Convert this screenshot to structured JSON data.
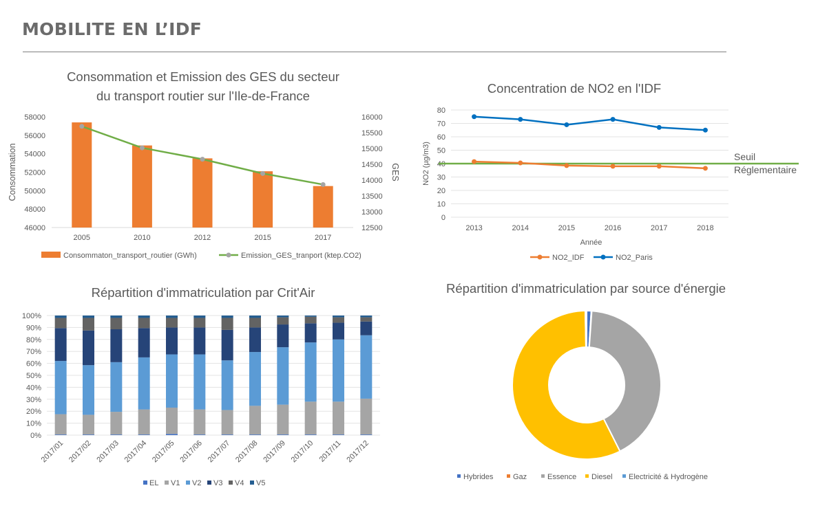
{
  "page": {
    "title": "MOBILITE EN L’IDF"
  },
  "chart_data": [
    {
      "id": "conso",
      "type": "bar",
      "title_lines": [
        "Consommation et Emission des GES du secteur",
        "du transport routier sur l'Ile-de-France"
      ],
      "categories": [
        "2005",
        "2010",
        "2012",
        "2015",
        "2017"
      ],
      "ylabel": "Consommation",
      "y2label": "GES",
      "ylim": [
        46000,
        58000
      ],
      "y_ticks": [
        46000,
        48000,
        50000,
        52000,
        54000,
        56000,
        58000
      ],
      "y2lim": [
        12500,
        16000
      ],
      "y2_ticks": [
        12500,
        13000,
        13500,
        14000,
        14500,
        15000,
        15500,
        16000
      ],
      "series": [
        {
          "name": "Consommaton_transport_routier (GWh)",
          "kind": "bar",
          "axis": "left",
          "color": "#ED7D31",
          "values": [
            57400,
            54900,
            53500,
            52100,
            50500
          ]
        },
        {
          "name": "Emission_GES_tranport (ktep.CO2)",
          "kind": "line",
          "axis": "right",
          "color": "#70AD47",
          "marker_color": "#A5A5A5",
          "values": [
            15700,
            15020,
            14660,
            14210,
            13860
          ]
        }
      ],
      "legend": "bottom",
      "grid": false
    },
    {
      "id": "no2",
      "type": "line",
      "title": "Concentration de NO2 en l'IDF",
      "x": [
        "2013",
        "2014",
        "2015",
        "2016",
        "2017",
        "2018"
      ],
      "xlabel": "Année",
      "ylabel": "NO2 (µg/m3)",
      "ylim": [
        0,
        80
      ],
      "y_ticks": [
        0,
        10,
        20,
        30,
        40,
        50,
        60,
        70,
        80
      ],
      "series": [
        {
          "name": "NO2_IDF",
          "color": "#ED7D31",
          "values": [
            41.5,
            40.5,
            38.5,
            38,
            38,
            36.5
          ]
        },
        {
          "name": "NO2_Paris",
          "color": "#0070C0",
          "values": [
            75,
            73,
            69,
            73,
            67,
            65
          ]
        }
      ],
      "threshold": {
        "value": 40,
        "label_lines": [
          "Seuil",
          "Réglementaire"
        ],
        "color": "#70AD47"
      },
      "legend": "bottom",
      "grid": true
    },
    {
      "id": "critair",
      "type": "bar",
      "stacked": true,
      "title": "Répartition d'immatriculation par Crit'Air",
      "categories": [
        "2017/01",
        "2017/02",
        "2017/03",
        "2017/04",
        "2017/05",
        "2017/06",
        "2017/07",
        "2017/08",
        "2017/09",
        "2017/10",
        "2017/11",
        "2017/12"
      ],
      "y_ticks": [
        "0%",
        "10%",
        "20%",
        "30%",
        "40%",
        "50%",
        "60%",
        "70%",
        "80%",
        "90%",
        "100%"
      ],
      "series": [
        {
          "name": "EL",
          "color": "#4472C4",
          "values": [
            0.5,
            0.5,
            0.5,
            0.5,
            1,
            0.5,
            0.5,
            0.5,
            0.5,
            0.5,
            0.5,
            0.5
          ]
        },
        {
          "name": "V1",
          "color": "#A5A5A5",
          "values": [
            17,
            16.5,
            19,
            21,
            22,
            21,
            20.5,
            24,
            25,
            27.5,
            27.5,
            30
          ]
        },
        {
          "name": "V2",
          "color": "#5B9BD5",
          "values": [
            44.5,
            41.5,
            41.5,
            43.5,
            44.5,
            46,
            41.5,
            45,
            48,
            49.5,
            52,
            53
          ]
        },
        {
          "name": "V3",
          "color": "#264478",
          "values": [
            27.5,
            29,
            27.5,
            24.5,
            22.5,
            22.5,
            25.5,
            20.5,
            19,
            16,
            14,
            11.5
          ]
        },
        {
          "name": "V4",
          "color": "#636363",
          "values": [
            8.5,
            10.5,
            9.5,
            8.5,
            8,
            8,
            10,
            8,
            6,
            5.5,
            4.5,
            3.5
          ]
        },
        {
          "name": "V5",
          "color": "#255E91",
          "values": [
            2,
            2,
            2,
            2,
            2,
            2,
            2,
            2,
            1.5,
            1,
            1.5,
            1.5
          ]
        }
      ],
      "ylim": [
        0,
        100
      ],
      "legend": "bottom",
      "grid": true
    },
    {
      "id": "energie",
      "type": "pie",
      "donut": true,
      "title": "Répartition d'immatriculation par source d'énergie",
      "slices": [
        {
          "name": "Hybrides",
          "color": "#4472C4",
          "value": 1
        },
        {
          "name": "Gaz",
          "color": "#ED7D31",
          "value": 0.1
        },
        {
          "name": "Essence",
          "color": "#A5A5A5",
          "value": 41.5
        },
        {
          "name": "Diesel",
          "color": "#FFC000",
          "value": 57.1
        },
        {
          "name": "Electricité & Hydrogène",
          "color": "#5B9BD5",
          "value": 0.3
        }
      ],
      "legend": "bottom"
    }
  ]
}
